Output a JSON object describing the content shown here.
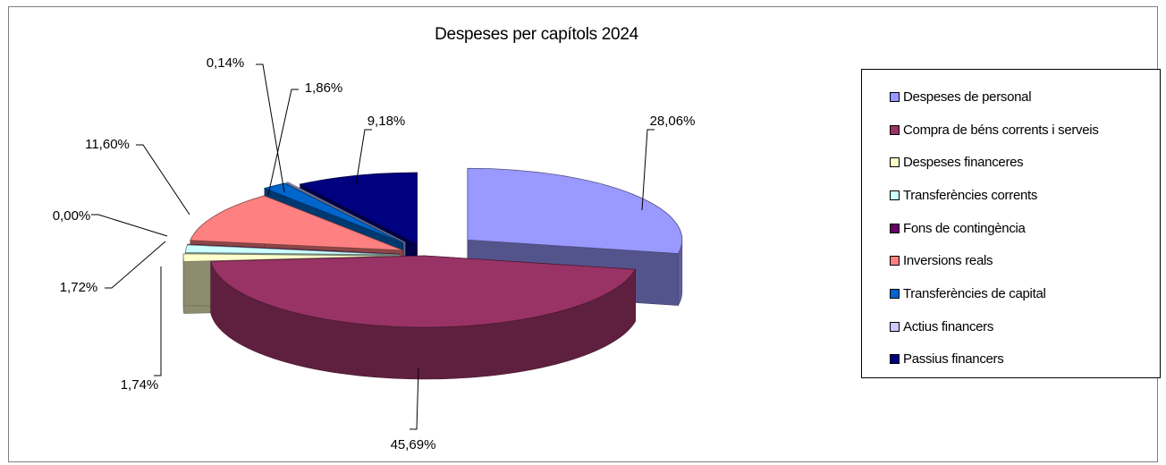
{
  "chart_data": {
    "type": "pie",
    "title": "Despeses per capítols 2024",
    "legend_position": "right",
    "categories": [
      "Despeses de personal",
      "Compra de béns corrents i serveis",
      "Despeses financeres",
      "Transferències corrents",
      "Fons de contingència",
      "Inversions reals",
      "Transferències de capital",
      "Actius financers",
      "Passius financers"
    ],
    "values": [
      28.06,
      45.69,
      1.74,
      1.72,
      0.0,
      11.6,
      1.86,
      0.14,
      9.18
    ],
    "data_labels": [
      "28,06%",
      "45,69%",
      "1,74%",
      "1,72%",
      "0,00%",
      "11,60%",
      "1,86%",
      "0,14%",
      "9,18%"
    ],
    "colors": [
      "#9999ff",
      "#993366",
      "#ffffcc",
      "#ccffff",
      "#660066",
      "#ff8080",
      "#0066cc",
      "#ccccff",
      "#000080"
    ]
  }
}
